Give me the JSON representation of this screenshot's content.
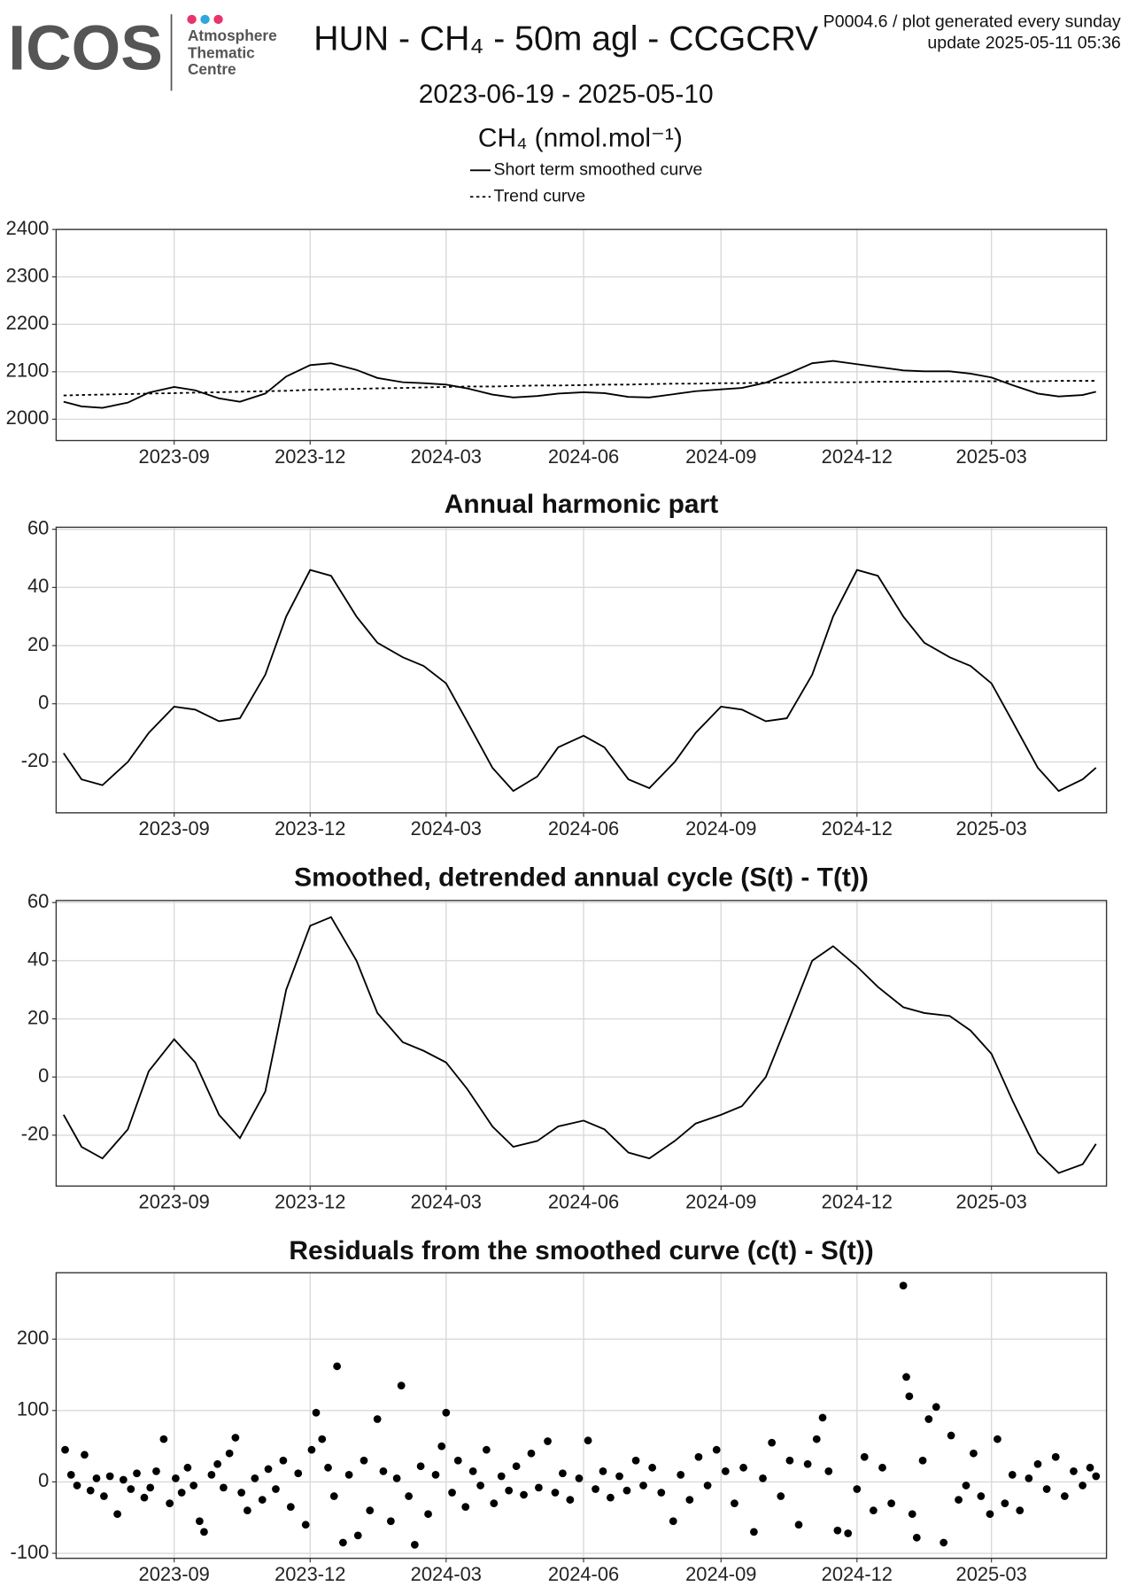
{
  "header": {
    "logo": {
      "name": "ICOS",
      "line1": "Atmosphere",
      "line2": "Thematic",
      "line3": "Centre"
    },
    "title": "HUN - CH₄ - 50m agl - CCGCRV",
    "info": [
      "P0004.6 / plot generated every sunday",
      "update  2025-05-11 05:36"
    ],
    "subtitle": "2023-06-19 - 2025-05-10"
  },
  "chart_data": [
    {
      "type": "line",
      "ylabel": "CH₄ (nmol.mol⁻¹)",
      "x": [
        "2023-06-19",
        "2023-07-01",
        "2023-07-15",
        "2023-08-01",
        "2023-08-15",
        "2023-09-01",
        "2023-09-15",
        "2023-10-01",
        "2023-10-15",
        "2023-11-01",
        "2023-11-15",
        "2023-12-01",
        "2023-12-15",
        "2024-01-01",
        "2024-01-15",
        "2024-02-01",
        "2024-02-15",
        "2024-03-01",
        "2024-03-15",
        "2024-04-01",
        "2024-04-15",
        "2024-05-01",
        "2024-05-15",
        "2024-06-01",
        "2024-06-15",
        "2024-07-01",
        "2024-07-15",
        "2024-08-01",
        "2024-08-15",
        "2024-09-01",
        "2024-09-15",
        "2024-10-01",
        "2024-10-15",
        "2024-11-01",
        "2024-11-15",
        "2024-12-01",
        "2024-12-15",
        "2025-01-01",
        "2025-01-15",
        "2025-02-01",
        "2025-02-15",
        "2025-03-01",
        "2025-03-15",
        "2025-04-01",
        "2025-04-15",
        "2025-05-01",
        "2025-05-10"
      ],
      "series": [
        {
          "name": "Short term smoothed curve",
          "color": "#000000",
          "dashed": false,
          "values": [
            2037,
            2027,
            2024,
            2035,
            2056,
            2068,
            2061,
            2044,
            2037,
            2054,
            2090,
            2114,
            2118,
            2104,
            2087,
            2078,
            2076,
            2073,
            2065,
            2052,
            2046,
            2049,
            2054,
            2057,
            2055,
            2047,
            2046,
            2053,
            2059,
            2063,
            2066,
            2077,
            2095,
            2118,
            2123,
            2116,
            2110,
            2103,
            2101,
            2101,
            2096,
            2088,
            2072,
            2054,
            2048,
            2051,
            2058
          ]
        },
        {
          "name": "Trend curve",
          "color": "#000000",
          "dashed": true,
          "values": [
            2050,
            2051,
            2052,
            2053,
            2054,
            2055,
            2056,
            2057,
            2058,
            2059,
            2060,
            2062,
            2063,
            2064,
            2065,
            2066,
            2067,
            2068,
            2069,
            2069,
            2070,
            2071,
            2071,
            2072,
            2073,
            2073,
            2074,
            2075,
            2075,
            2076,
            2076,
            2077,
            2077,
            2078,
            2078,
            2078,
            2079,
            2079,
            2079,
            2080,
            2080,
            2080,
            2080,
            2080,
            2081,
            2081,
            2081
          ]
        }
      ],
      "xlim": [
        "2023-06-14",
        "2025-05-17"
      ],
      "xticks": [
        {
          "value": "2023-09-01",
          "label": "2023-09"
        },
        {
          "value": "2023-12-01",
          "label": "2023-12"
        },
        {
          "value": "2024-03-01",
          "label": "2024-03"
        },
        {
          "value": "2024-06-01",
          "label": "2024-06"
        },
        {
          "value": "2024-09-01",
          "label": "2024-09"
        },
        {
          "value": "2024-12-01",
          "label": "2024-12"
        },
        {
          "value": "2025-03-01",
          "label": "2025-03"
        }
      ],
      "ylim": [
        1955,
        2400
      ],
      "yticks": [
        2000,
        2100,
        2200,
        2300,
        2400
      ],
      "grid": true
    },
    {
      "type": "line",
      "title": "Annual harmonic part",
      "x": [
        "2023-06-19",
        "2023-07-01",
        "2023-07-15",
        "2023-08-01",
        "2023-08-15",
        "2023-09-01",
        "2023-09-15",
        "2023-10-01",
        "2023-10-15",
        "2023-11-01",
        "2023-11-15",
        "2023-12-01",
        "2023-12-15",
        "2024-01-01",
        "2024-01-15",
        "2024-02-01",
        "2024-02-15",
        "2024-03-01",
        "2024-03-15",
        "2024-04-01",
        "2024-04-15",
        "2024-05-01",
        "2024-05-15",
        "2024-06-01",
        "2024-06-15",
        "2024-07-01",
        "2024-07-15",
        "2024-08-01",
        "2024-08-15",
        "2024-09-01",
        "2024-09-15",
        "2024-10-01",
        "2024-10-15",
        "2024-11-01",
        "2024-11-15",
        "2024-12-01",
        "2024-12-15",
        "2025-01-01",
        "2025-01-15",
        "2025-02-01",
        "2025-02-15",
        "2025-03-01",
        "2025-03-15",
        "2025-04-01",
        "2025-04-15",
        "2025-05-01",
        "2025-05-10"
      ],
      "series": [
        {
          "color": "#000000",
          "dashed": false,
          "values": [
            -17,
            -26,
            -28,
            -20,
            -10,
            -1,
            -2,
            -6,
            -5,
            10,
            30,
            46,
            44,
            30,
            21,
            16,
            13,
            7,
            -6,
            -22,
            -30,
            -25,
            -15,
            -11,
            -15,
            -26,
            -29,
            -20,
            -10,
            -1,
            -2,
            -6,
            -5,
            10,
            30,
            46,
            44,
            30,
            21,
            16,
            13,
            7,
            -6,
            -22,
            -30,
            -26,
            -22
          ]
        }
      ],
      "xlim": [
        "2023-06-14",
        "2025-05-17"
      ],
      "xticks": [
        {
          "value": "2023-09-01",
          "label": "2023-09"
        },
        {
          "value": "2023-12-01",
          "label": "2023-12"
        },
        {
          "value": "2024-03-01",
          "label": "2024-03"
        },
        {
          "value": "2024-06-01",
          "label": "2024-06"
        },
        {
          "value": "2024-09-01",
          "label": "2024-09"
        },
        {
          "value": "2024-12-01",
          "label": "2024-12"
        },
        {
          "value": "2025-03-01",
          "label": "2025-03"
        }
      ],
      "ylim": [
        -37.5,
        60.7
      ],
      "yticks": [
        -20,
        0,
        20,
        40,
        60
      ],
      "grid": true
    },
    {
      "type": "line",
      "title": "Smoothed, detrended annual cycle (S(t) - T(t))",
      "x": [
        "2023-06-19",
        "2023-07-01",
        "2023-07-15",
        "2023-08-01",
        "2023-08-15",
        "2023-09-01",
        "2023-09-15",
        "2023-10-01",
        "2023-10-15",
        "2023-11-01",
        "2023-11-15",
        "2023-12-01",
        "2023-12-15",
        "2024-01-01",
        "2024-01-15",
        "2024-02-01",
        "2024-02-15",
        "2024-03-01",
        "2024-03-15",
        "2024-04-01",
        "2024-04-15",
        "2024-05-01",
        "2024-05-15",
        "2024-06-01",
        "2024-06-15",
        "2024-07-01",
        "2024-07-15",
        "2024-08-01",
        "2024-08-15",
        "2024-09-01",
        "2024-09-15",
        "2024-10-01",
        "2024-10-15",
        "2024-11-01",
        "2024-11-15",
        "2024-12-01",
        "2024-12-15",
        "2025-01-01",
        "2025-01-15",
        "2025-02-01",
        "2025-02-15",
        "2025-03-01",
        "2025-03-15",
        "2025-04-01",
        "2025-04-15",
        "2025-05-01",
        "2025-05-10"
      ],
      "series": [
        {
          "color": "#000000",
          "dashed": false,
          "values": [
            -13,
            -24,
            -28,
            -18,
            2,
            13,
            5,
            -13,
            -21,
            -5,
            30,
            52,
            55,
            40,
            22,
            12,
            9,
            5,
            -4,
            -17,
            -24,
            -22,
            -17,
            -15,
            -18,
            -26,
            -28,
            -22,
            -16,
            -13,
            -10,
            0,
            18,
            40,
            45,
            38,
            31,
            24,
            22,
            21,
            16,
            8,
            -8,
            -26,
            -33,
            -30,
            -23
          ]
        }
      ],
      "xlim": [
        "2023-06-14",
        "2025-05-17"
      ],
      "xticks": [
        {
          "value": "2023-09-01",
          "label": "2023-09"
        },
        {
          "value": "2023-12-01",
          "label": "2023-12"
        },
        {
          "value": "2024-03-01",
          "label": "2024-03"
        },
        {
          "value": "2024-06-01",
          "label": "2024-06"
        },
        {
          "value": "2024-09-01",
          "label": "2024-09"
        },
        {
          "value": "2024-12-01",
          "label": "2024-12"
        },
        {
          "value": "2025-03-01",
          "label": "2025-03"
        }
      ],
      "ylim": [
        -37.5,
        60.7
      ],
      "yticks": [
        -20,
        0,
        20,
        40,
        60
      ],
      "grid": true
    },
    {
      "type": "scatter",
      "title": "Residuals from the smoothed curve (c(t) - S(t))",
      "color": "#000000",
      "x": [
        "2023-06-20",
        "2023-06-24",
        "2023-06-28",
        "2023-07-03",
        "2023-07-07",
        "2023-07-11",
        "2023-07-16",
        "2023-07-20",
        "2023-07-25",
        "2023-07-29",
        "2023-08-03",
        "2023-08-07",
        "2023-08-12",
        "2023-08-16",
        "2023-08-20",
        "2023-08-25",
        "2023-08-29",
        "2023-09-02",
        "2023-09-06",
        "2023-09-10",
        "2023-09-14",
        "2023-09-18",
        "2023-09-21",
        "2023-09-26",
        "2023-09-30",
        "2023-10-04",
        "2023-10-08",
        "2023-10-12",
        "2023-10-16",
        "2023-10-20",
        "2023-10-25",
        "2023-10-30",
        "2023-11-03",
        "2023-11-08",
        "2023-11-13",
        "2023-11-18",
        "2023-11-23",
        "2023-11-28",
        "2023-12-02",
        "2023-12-05",
        "2023-12-09",
        "2023-12-13",
        "2023-12-17",
        "2023-12-19",
        "2023-12-23",
        "2023-12-27",
        "2024-01-02",
        "2024-01-06",
        "2024-01-10",
        "2024-01-15",
        "2024-01-19",
        "2024-01-24",
        "2024-01-28",
        "2024-01-31",
        "2024-02-05",
        "2024-02-09",
        "2024-02-13",
        "2024-02-18",
        "2024-02-23",
        "2024-02-27",
        "2024-03-01",
        "2024-03-05",
        "2024-03-09",
        "2024-03-14",
        "2024-03-19",
        "2024-03-24",
        "2024-03-28",
        "2024-04-02",
        "2024-04-07",
        "2024-04-12",
        "2024-04-17",
        "2024-04-22",
        "2024-04-27",
        "2024-05-02",
        "2024-05-08",
        "2024-05-13",
        "2024-05-18",
        "2024-05-23",
        "2024-05-29",
        "2024-06-04",
        "2024-06-09",
        "2024-06-14",
        "2024-06-19",
        "2024-06-25",
        "2024-06-30",
        "2024-07-06",
        "2024-07-11",
        "2024-07-17",
        "2024-07-23",
        "2024-07-31",
        "2024-08-05",
        "2024-08-11",
        "2024-08-17",
        "2024-08-23",
        "2024-08-29",
        "2024-09-04",
        "2024-09-10",
        "2024-09-16",
        "2024-09-23",
        "2024-09-29",
        "2024-10-05",
        "2024-10-11",
        "2024-10-17",
        "2024-10-23",
        "2024-10-29",
        "2024-11-04",
        "2024-11-08",
        "2024-11-12",
        "2024-11-18",
        "2024-11-25",
        "2024-12-01",
        "2024-12-06",
        "2024-12-12",
        "2024-12-18",
        "2024-12-24",
        "2025-01-01",
        "2025-01-03",
        "2025-01-05",
        "2025-01-07",
        "2025-01-10",
        "2025-01-14",
        "2025-01-18",
        "2025-01-23",
        "2025-01-28",
        "2025-02-02",
        "2025-02-07",
        "2025-02-12",
        "2025-02-17",
        "2025-02-22",
        "2025-02-28",
        "2025-03-05",
        "2025-03-10",
        "2025-03-15",
        "2025-03-20",
        "2025-03-26",
        "2025-04-01",
        "2025-04-07",
        "2025-04-13",
        "2025-04-19",
        "2025-04-25",
        "2025-05-01",
        "2025-05-06",
        "2025-05-10"
      ],
      "values": [
        45,
        10,
        -5,
        38,
        -12,
        5,
        -20,
        8,
        -45,
        3,
        -10,
        12,
        -22,
        -8,
        15,
        60,
        -30,
        5,
        -15,
        20,
        -5,
        -55,
        -70,
        10,
        25,
        -8,
        40,
        62,
        -15,
        -40,
        5,
        -25,
        18,
        -10,
        30,
        -35,
        12,
        -60,
        45,
        97,
        60,
        20,
        -20,
        162,
        -85,
        10,
        -75,
        30,
        -40,
        88,
        15,
        -55,
        5,
        135,
        -20,
        -88,
        22,
        -45,
        10,
        50,
        97,
        -15,
        30,
        -35,
        15,
        -5,
        45,
        -30,
        8,
        -12,
        22,
        -18,
        40,
        -8,
        57,
        -15,
        12,
        -25,
        5,
        58,
        -10,
        15,
        -22,
        8,
        -12,
        30,
        -5,
        20,
        -15,
        -55,
        10,
        -25,
        35,
        -5,
        45,
        15,
        -30,
        20,
        -70,
        5,
        55,
        -20,
        30,
        -60,
        25,
        60,
        90,
        15,
        -68,
        -72,
        -10,
        35,
        -40,
        20,
        -30,
        275,
        147,
        120,
        -45,
        -78,
        30,
        88,
        105,
        -85,
        65,
        -25,
        -5,
        40,
        -20,
        -45,
        60,
        -30,
        10,
        -40,
        5,
        25,
        -10,
        35,
        -20,
        15,
        -5,
        20,
        8
      ],
      "xlim": [
        "2023-06-14",
        "2025-05-17"
      ],
      "xticks": [
        {
          "value": "2023-09-01",
          "label": "2023-09"
        },
        {
          "value": "2023-12-01",
          "label": "2023-12"
        },
        {
          "value": "2024-03-01",
          "label": "2024-03"
        },
        {
          "value": "2024-06-01",
          "label": "2024-06"
        },
        {
          "value": "2024-09-01",
          "label": "2024-09"
        },
        {
          "value": "2024-12-01",
          "label": "2024-12"
        },
        {
          "value": "2025-03-01",
          "label": "2025-03"
        }
      ],
      "ylim": [
        -107,
        293
      ],
      "yticks": [
        -100,
        0,
        100,
        200
      ],
      "grid": true
    }
  ]
}
